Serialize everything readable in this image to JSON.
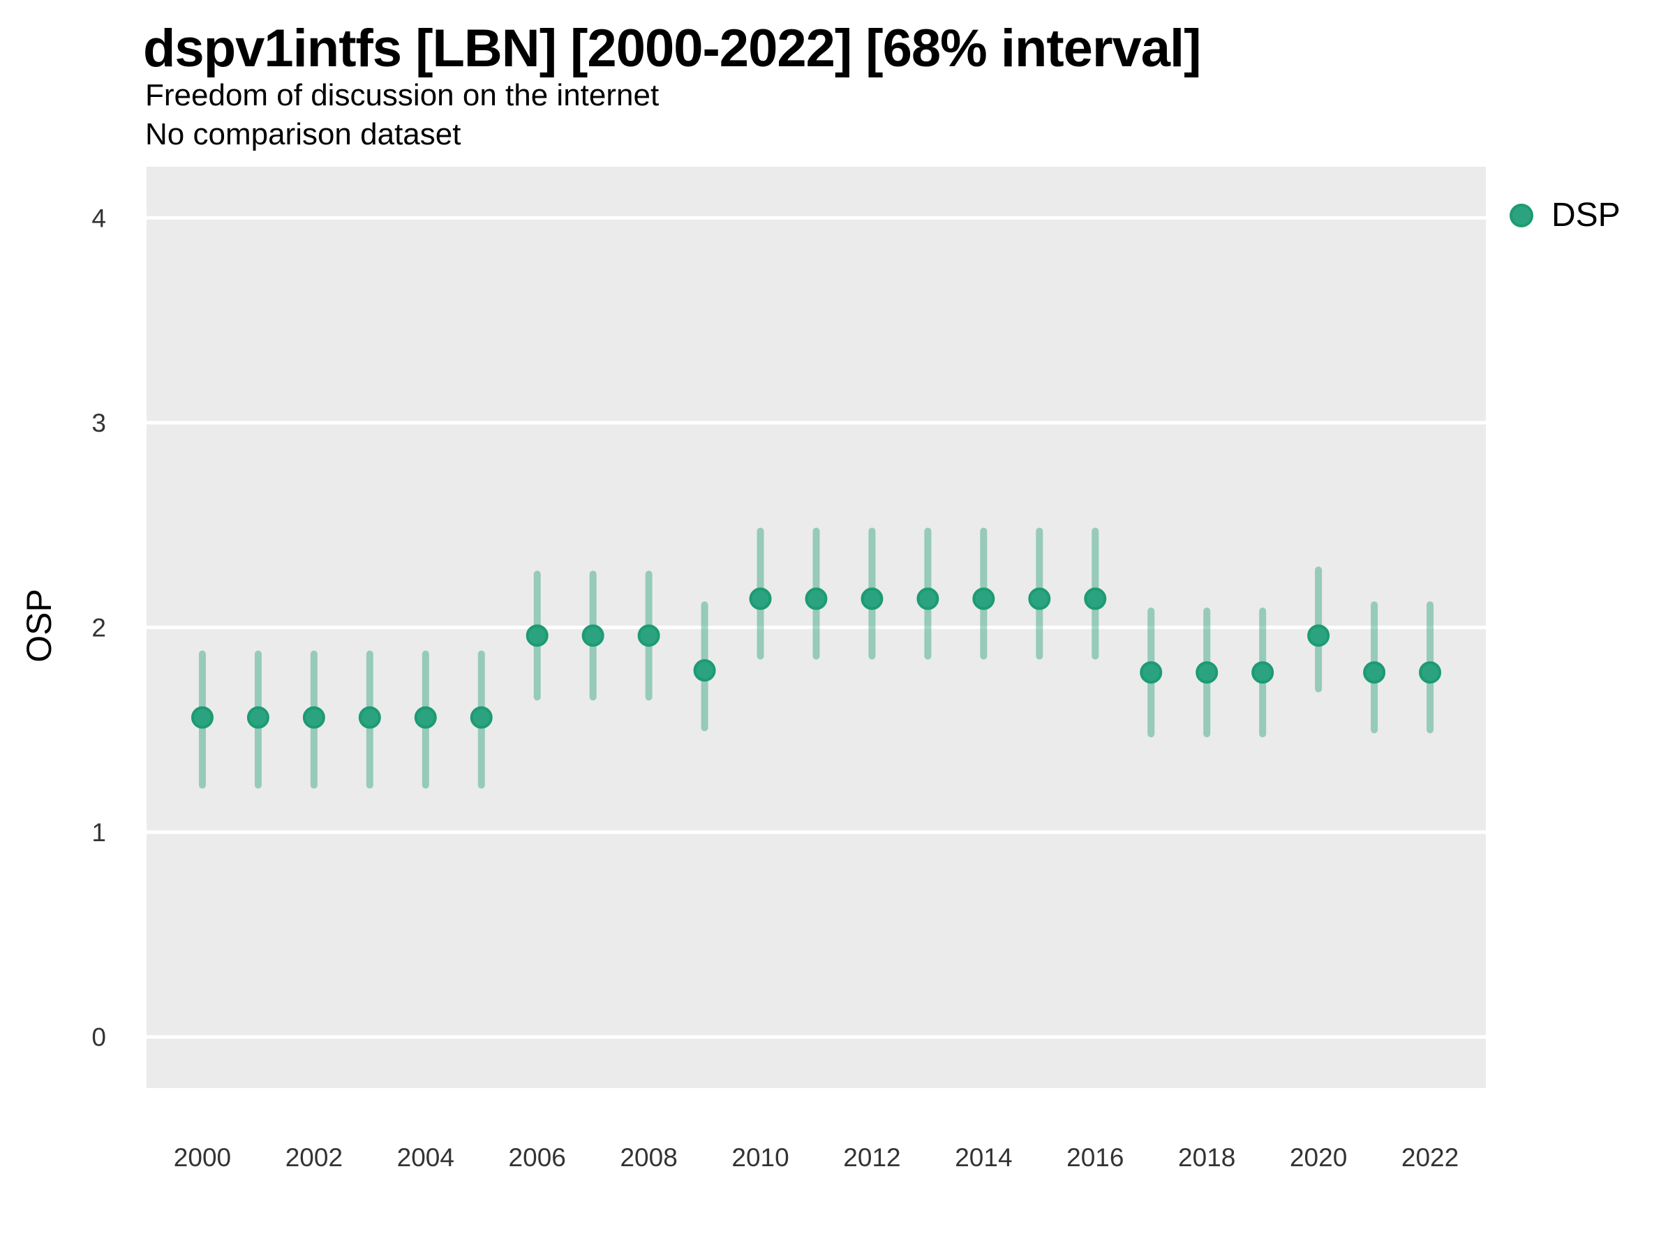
{
  "header": {
    "title": "dspv1intfs [LBN] [2000-2022] [68% interval]",
    "subtitle": "Freedom of discussion on the internet",
    "note": "No comparison dataset"
  },
  "legend": {
    "label": "DSP",
    "position": "right"
  },
  "colors": {
    "point_fill": "#2CA380",
    "point_stroke": "#1D9B72",
    "interval": "rgba(46,162,124,0.45)",
    "panel_background": "#EBEBEB",
    "gridline": "#FFFFFF",
    "tick_text": "#333333"
  },
  "chart_data": {
    "type": "pointrange",
    "title": "dspv1intfs [LBN] [2000-2022] [68% interval]",
    "subtitle": "Freedom of discussion on the internet",
    "note": "No comparison dataset",
    "xlabel": "",
    "ylabel": "OSP",
    "interval_level": "68%",
    "grid": "horizontal-major-only",
    "legend_position": "right",
    "ylim": [
      -0.25,
      4.25
    ],
    "xlim": [
      1999,
      2023
    ],
    "yticks": [
      0,
      1,
      2,
      3,
      4
    ],
    "xticks": [
      2000,
      2002,
      2004,
      2006,
      2008,
      2010,
      2012,
      2014,
      2016,
      2018,
      2020,
      2022
    ],
    "series": [
      {
        "name": "DSP",
        "points": [
          {
            "year": 2000,
            "value": 1.56,
            "lo": 1.23,
            "hi": 1.87
          },
          {
            "year": 2001,
            "value": 1.56,
            "lo": 1.23,
            "hi": 1.87
          },
          {
            "year": 2002,
            "value": 1.56,
            "lo": 1.23,
            "hi": 1.87
          },
          {
            "year": 2003,
            "value": 1.56,
            "lo": 1.23,
            "hi": 1.87
          },
          {
            "year": 2004,
            "value": 1.56,
            "lo": 1.23,
            "hi": 1.87
          },
          {
            "year": 2005,
            "value": 1.56,
            "lo": 1.23,
            "hi": 1.87
          },
          {
            "year": 2006,
            "value": 1.96,
            "lo": 1.66,
            "hi": 2.26
          },
          {
            "year": 2007,
            "value": 1.96,
            "lo": 1.66,
            "hi": 2.26
          },
          {
            "year": 2008,
            "value": 1.96,
            "lo": 1.66,
            "hi": 2.26
          },
          {
            "year": 2009,
            "value": 1.79,
            "lo": 1.51,
            "hi": 2.11
          },
          {
            "year": 2010,
            "value": 2.14,
            "lo": 1.86,
            "hi": 2.47
          },
          {
            "year": 2011,
            "value": 2.14,
            "lo": 1.86,
            "hi": 2.47
          },
          {
            "year": 2012,
            "value": 2.14,
            "lo": 1.86,
            "hi": 2.47
          },
          {
            "year": 2013,
            "value": 2.14,
            "lo": 1.86,
            "hi": 2.47
          },
          {
            "year": 2014,
            "value": 2.14,
            "lo": 1.86,
            "hi": 2.47
          },
          {
            "year": 2015,
            "value": 2.14,
            "lo": 1.86,
            "hi": 2.47
          },
          {
            "year": 2016,
            "value": 2.14,
            "lo": 1.86,
            "hi": 2.47
          },
          {
            "year": 2017,
            "value": 1.78,
            "lo": 1.48,
            "hi": 2.08
          },
          {
            "year": 2018,
            "value": 1.78,
            "lo": 1.48,
            "hi": 2.08
          },
          {
            "year": 2019,
            "value": 1.78,
            "lo": 1.48,
            "hi": 2.08
          },
          {
            "year": 2020,
            "value": 1.96,
            "lo": 1.7,
            "hi": 2.28
          },
          {
            "year": 2021,
            "value": 1.78,
            "lo": 1.5,
            "hi": 2.11
          },
          {
            "year": 2022,
            "value": 1.78,
            "lo": 1.5,
            "hi": 2.11
          }
        ]
      }
    ]
  }
}
